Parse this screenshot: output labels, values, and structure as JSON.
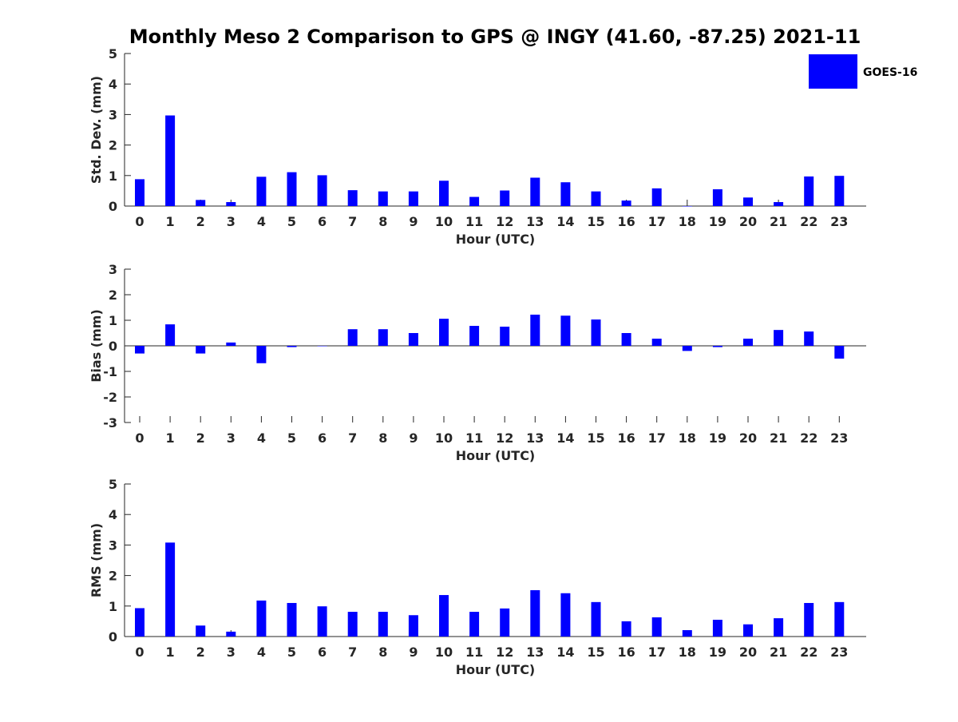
{
  "chart_data": {
    "title": "Monthly Meso 2 Comparison to GPS @ INGY (41.60, -87.25) 2021-11",
    "legend": {
      "entries": [
        "GOES-16"
      ],
      "placement": "top-right"
    },
    "bar_color": "#0000ff",
    "panels": [
      {
        "type": "bar",
        "ylabel": "Std. Dev. (mm)",
        "xlabel": "Hour (UTC)",
        "ylim": [
          0,
          5
        ],
        "yticks": [
          "0",
          "1",
          "2",
          "3",
          "4",
          "5"
        ],
        "categories": [
          "0",
          "1",
          "2",
          "3",
          "4",
          "5",
          "6",
          "7",
          "8",
          "9",
          "10",
          "11",
          "12",
          "13",
          "14",
          "15",
          "16",
          "17",
          "18",
          "19",
          "20",
          "21",
          "22",
          "23"
        ],
        "series": [
          {
            "name": "GOES-16",
            "values": [
              0.88,
              2.97,
              0.2,
              0.13,
              0.96,
              1.11,
              1.01,
              0.52,
              0.48,
              0.48,
              0.83,
              0.3,
              0.51,
              0.93,
              0.78,
              0.48,
              0.18,
              0.58,
              0.0,
              0.55,
              0.28,
              0.13,
              0.97,
              0.99
            ]
          }
        ]
      },
      {
        "type": "bar",
        "ylabel": "Bias (mm)",
        "xlabel": "Hour (UTC)",
        "ylim": [
          -3,
          3
        ],
        "yticks": [
          "-3",
          "-2",
          "-1",
          "0",
          "1",
          "2",
          "3"
        ],
        "categories": [
          "0",
          "1",
          "2",
          "3",
          "4",
          "5",
          "6",
          "7",
          "8",
          "9",
          "10",
          "11",
          "12",
          "13",
          "14",
          "15",
          "16",
          "17",
          "18",
          "19",
          "20",
          "21",
          "22",
          "23"
        ],
        "series": [
          {
            "name": "GOES-16",
            "values": [
              -0.3,
              0.84,
              -0.3,
              0.13,
              -0.68,
              -0.05,
              0.0,
              0.65,
              0.65,
              0.5,
              1.06,
              0.78,
              0.75,
              1.22,
              1.18,
              1.03,
              0.5,
              0.28,
              -0.2,
              -0.05,
              0.28,
              0.62,
              0.56,
              -0.5
            ]
          }
        ]
      },
      {
        "type": "bar",
        "ylabel": "RMS (mm)",
        "xlabel": "Hour (UTC)",
        "ylim": [
          0,
          5
        ],
        "yticks": [
          "0",
          "1",
          "2",
          "3",
          "4",
          "5"
        ],
        "categories": [
          "0",
          "1",
          "2",
          "3",
          "4",
          "5",
          "6",
          "7",
          "8",
          "9",
          "10",
          "11",
          "12",
          "13",
          "14",
          "15",
          "16",
          "17",
          "18",
          "19",
          "20",
          "21",
          "22",
          "23"
        ],
        "series": [
          {
            "name": "GOES-16",
            "values": [
              0.93,
              3.08,
              0.36,
              0.16,
              1.18,
              1.1,
              0.99,
              0.81,
              0.81,
              0.7,
              1.36,
              0.81,
              0.92,
              1.52,
              1.42,
              1.13,
              0.5,
              0.63,
              0.21,
              0.55,
              0.4,
              0.6,
              1.1,
              1.13
            ]
          }
        ]
      }
    ]
  }
}
